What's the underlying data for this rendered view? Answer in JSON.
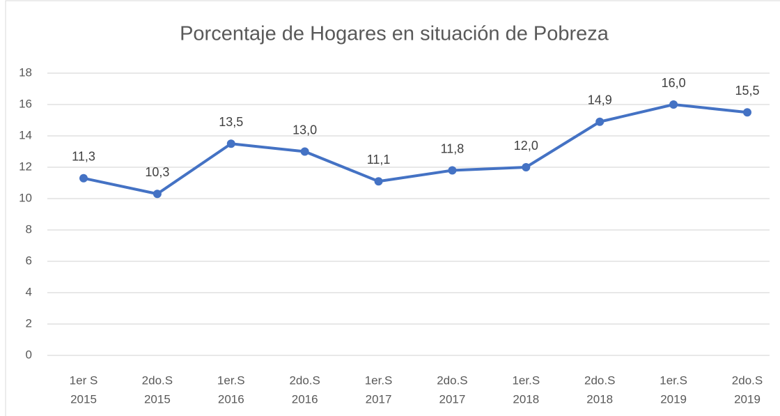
{
  "chart_data": {
    "type": "line",
    "title": "Porcentaje de Hogares en situación de Pobreza",
    "categories": [
      [
        "1er S",
        "2015"
      ],
      [
        "2do.S",
        "2015"
      ],
      [
        "1er.S",
        "2016"
      ],
      [
        "2do.S",
        "2016"
      ],
      [
        "1er.S",
        "2017"
      ],
      [
        "2do.S",
        "2017"
      ],
      [
        "1er.S",
        "2018"
      ],
      [
        "2do.S",
        "2018"
      ],
      [
        "1er.S",
        "2019"
      ],
      [
        "2do.S",
        "2019"
      ]
    ],
    "values": [
      11.3,
      10.3,
      13.5,
      13.0,
      11.1,
      11.8,
      12.0,
      14.9,
      16.0,
      15.5
    ],
    "value_labels": [
      "11,3",
      "10,3",
      "13,5",
      "13,0",
      "11,1",
      "11,8",
      "12,0",
      "14,9",
      "16,0",
      "15,5"
    ],
    "color": "#4472c4",
    "ylim": [
      0,
      18
    ],
    "yticks": [
      0,
      2,
      4,
      6,
      8,
      10,
      12,
      14,
      16,
      18
    ],
    "grid": true
  }
}
